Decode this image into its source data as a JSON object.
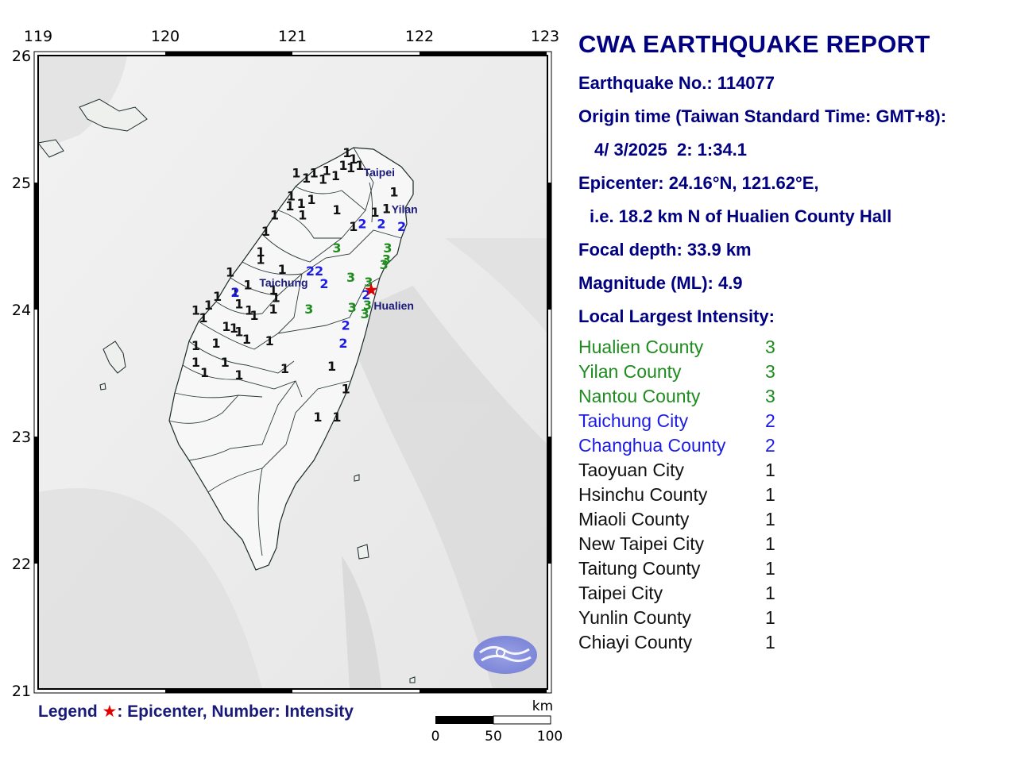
{
  "report": {
    "title": "CWA EARTHQUAKE REPORT",
    "earthquake_no": "Earthquake No.: 114077",
    "origin_time_label": "Origin time (Taiwan Standard Time: GMT+8):",
    "origin_time_value": "4/ 3/2025  2: 1:34.1",
    "epicenter": "Epicenter: 24.16°N, 121.62°E,",
    "epicenter_desc": "i.e. 18.2 km N of Hualien County Hall",
    "focal_depth": "Focal depth: 33.9 km",
    "magnitude": "Magnitude (ML): 4.9",
    "largest_intensity_label": "Local Largest Intensity:",
    "intensity_list": [
      {
        "name": "Hualien County",
        "value": "3",
        "color": "#1e8c1e"
      },
      {
        "name": "Yilan County",
        "value": "3",
        "color": "#1e8c1e"
      },
      {
        "name": "Nantou County",
        "value": "3",
        "color": "#1e8c1e"
      },
      {
        "name": "Taichung City",
        "value": "2",
        "color": "#1c1ce6"
      },
      {
        "name": "Changhua County",
        "value": "2",
        "color": "#1c1ce6"
      },
      {
        "name": "Taoyuan City",
        "value": "1",
        "color": "#111111"
      },
      {
        "name": "Hsinchu County",
        "value": "1",
        "color": "#111111"
      },
      {
        "name": "Miaoli County",
        "value": "1",
        "color": "#111111"
      },
      {
        "name": "New Taipei City",
        "value": "1",
        "color": "#111111"
      },
      {
        "name": "Taitung County",
        "value": "1",
        "color": "#111111"
      },
      {
        "name": "Taipei City",
        "value": "1",
        "color": "#111111"
      },
      {
        "name": "Yunlin County",
        "value": "1",
        "color": "#111111"
      },
      {
        "name": "Chiayi County",
        "value": "1",
        "color": "#111111"
      }
    ]
  },
  "map": {
    "lon_ticks": [
      "119",
      "120",
      "121",
      "122",
      "123"
    ],
    "lat_ticks": [
      "26",
      "25",
      "24",
      "23",
      "22",
      "21"
    ],
    "lon_range": [
      119,
      123
    ],
    "lat_range": [
      21,
      26
    ],
    "cities": [
      {
        "name": "Taipei",
        "lon": 121.56,
        "lat": 25.05
      },
      {
        "name": "Yilan",
        "lon": 121.78,
        "lat": 24.76
      },
      {
        "name": "Taichung",
        "lon": 120.74,
        "lat": 24.18
      },
      {
        "name": "Hualien",
        "lon": 121.64,
        "lat": 24.0
      }
    ],
    "epicenter": {
      "lon": 121.62,
      "lat": 24.16,
      "color": "#e00000"
    },
    "intensity_colors": {
      "1": "#111111",
      "2": "#1c1ce6",
      "3": "#1e8c1e"
    },
    "stations": [
      {
        "lon": 121.43,
        "lat": 25.2,
        "v": "1"
      },
      {
        "lon": 121.48,
        "lat": 25.15,
        "v": "1"
      },
      {
        "lon": 121.53,
        "lat": 25.1,
        "v": "1"
      },
      {
        "lon": 121.46,
        "lat": 25.08,
        "v": "1"
      },
      {
        "lon": 121.4,
        "lat": 25.1,
        "v": "1"
      },
      {
        "lon": 121.34,
        "lat": 25.02,
        "v": "1"
      },
      {
        "lon": 121.27,
        "lat": 25.06,
        "v": "1"
      },
      {
        "lon": 121.24,
        "lat": 24.99,
        "v": "1"
      },
      {
        "lon": 121.17,
        "lat": 25.04,
        "v": "1"
      },
      {
        "lon": 121.03,
        "lat": 25.04,
        "v": "1"
      },
      {
        "lon": 121.11,
        "lat": 25.0,
        "v": "1"
      },
      {
        "lon": 120.99,
        "lat": 24.86,
        "v": "1"
      },
      {
        "lon": 121.07,
        "lat": 24.8,
        "v": "1"
      },
      {
        "lon": 121.15,
        "lat": 24.83,
        "v": "1"
      },
      {
        "lon": 120.98,
        "lat": 24.78,
        "v": "1"
      },
      {
        "lon": 120.86,
        "lat": 24.71,
        "v": "1"
      },
      {
        "lon": 121.08,
        "lat": 24.71,
        "v": "1"
      },
      {
        "lon": 121.35,
        "lat": 24.75,
        "v": "1"
      },
      {
        "lon": 121.48,
        "lat": 24.62,
        "v": "1"
      },
      {
        "lon": 121.65,
        "lat": 24.73,
        "v": "1"
      },
      {
        "lon": 121.74,
        "lat": 24.76,
        "v": "1"
      },
      {
        "lon": 121.8,
        "lat": 24.89,
        "v": "1"
      },
      {
        "lon": 120.79,
        "lat": 24.58,
        "v": "1"
      },
      {
        "lon": 120.75,
        "lat": 24.42,
        "v": "1"
      },
      {
        "lon": 120.75,
        "lat": 24.36,
        "v": "1"
      },
      {
        "lon": 120.92,
        "lat": 24.28,
        "v": "1"
      },
      {
        "lon": 120.51,
        "lat": 24.26,
        "v": "1"
      },
      {
        "lon": 120.65,
        "lat": 24.16,
        "v": "1"
      },
      {
        "lon": 120.41,
        "lat": 24.07,
        "v": "1"
      },
      {
        "lon": 120.55,
        "lat": 24.1,
        "v": "1"
      },
      {
        "lon": 120.85,
        "lat": 24.12,
        "v": "1"
      },
      {
        "lon": 120.87,
        "lat": 24.06,
        "v": "1"
      },
      {
        "lon": 120.58,
        "lat": 24.01,
        "v": "1"
      },
      {
        "lon": 120.34,
        "lat": 24.0,
        "v": "1"
      },
      {
        "lon": 120.24,
        "lat": 23.96,
        "v": "1"
      },
      {
        "lon": 120.3,
        "lat": 23.9,
        "v": "1"
      },
      {
        "lon": 120.66,
        "lat": 23.96,
        "v": "1"
      },
      {
        "lon": 120.7,
        "lat": 23.92,
        "v": "1"
      },
      {
        "lon": 120.85,
        "lat": 23.97,
        "v": "1"
      },
      {
        "lon": 120.48,
        "lat": 23.83,
        "v": "1"
      },
      {
        "lon": 120.54,
        "lat": 23.82,
        "v": "1"
      },
      {
        "lon": 120.58,
        "lat": 23.79,
        "v": "1"
      },
      {
        "lon": 120.4,
        "lat": 23.7,
        "v": "1"
      },
      {
        "lon": 120.64,
        "lat": 23.73,
        "v": "1"
      },
      {
        "lon": 120.82,
        "lat": 23.72,
        "v": "1"
      },
      {
        "lon": 120.24,
        "lat": 23.68,
        "v": "1"
      },
      {
        "lon": 120.24,
        "lat": 23.55,
        "v": "1"
      },
      {
        "lon": 120.31,
        "lat": 23.47,
        "v": "1"
      },
      {
        "lon": 120.47,
        "lat": 23.55,
        "v": "1"
      },
      {
        "lon": 120.58,
        "lat": 23.45,
        "v": "1"
      },
      {
        "lon": 120.94,
        "lat": 23.5,
        "v": "1"
      },
      {
        "lon": 121.31,
        "lat": 23.52,
        "v": "1"
      },
      {
        "lon": 121.42,
        "lat": 23.34,
        "v": "1"
      },
      {
        "lon": 121.2,
        "lat": 23.12,
        "v": "1"
      },
      {
        "lon": 121.35,
        "lat": 23.12,
        "v": "1"
      },
      {
        "lon": 121.55,
        "lat": 24.64,
        "v": "2"
      },
      {
        "lon": 121.7,
        "lat": 24.64,
        "v": "2"
      },
      {
        "lon": 121.86,
        "lat": 24.62,
        "v": "2"
      },
      {
        "lon": 121.14,
        "lat": 24.27,
        "v": "2"
      },
      {
        "lon": 121.21,
        "lat": 24.27,
        "v": "2"
      },
      {
        "lon": 121.25,
        "lat": 24.17,
        "v": "2"
      },
      {
        "lon": 120.55,
        "lat": 24.1,
        "v": "2"
      },
      {
        "lon": 121.58,
        "lat": 24.08,
        "v": "2"
      },
      {
        "lon": 121.42,
        "lat": 23.84,
        "v": "2"
      },
      {
        "lon": 121.4,
        "lat": 23.7,
        "v": "2"
      },
      {
        "lon": 121.35,
        "lat": 24.45,
        "v": "3"
      },
      {
        "lon": 121.46,
        "lat": 24.22,
        "v": "3"
      },
      {
        "lon": 121.75,
        "lat": 24.45,
        "v": "3"
      },
      {
        "lon": 121.72,
        "lat": 24.32,
        "v": "3"
      },
      {
        "lon": 121.74,
        "lat": 24.36,
        "v": "3"
      },
      {
        "lon": 121.6,
        "lat": 24.18,
        "v": "3"
      },
      {
        "lon": 121.13,
        "lat": 23.97,
        "v": "3"
      },
      {
        "lon": 121.47,
        "lat": 23.98,
        "v": "3"
      },
      {
        "lon": 121.59,
        "lat": 24.0,
        "v": "3"
      },
      {
        "lon": 121.57,
        "lat": 23.93,
        "v": "3"
      }
    ],
    "scale": {
      "unit": "km",
      "labels": [
        "0",
        "50",
        "100"
      ]
    }
  },
  "legend": {
    "label": "Legend",
    "star": "★",
    "text": ": Epicenter, Number: Intensity"
  }
}
